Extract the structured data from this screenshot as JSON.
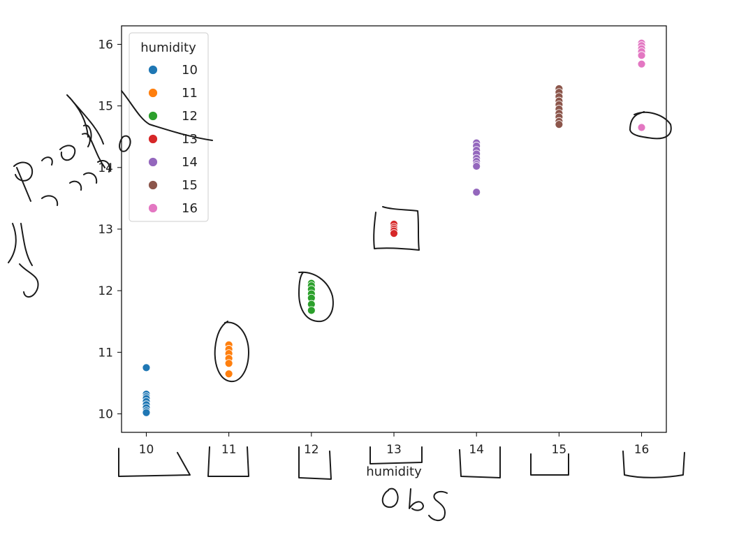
{
  "chart_data": {
    "type": "scatter",
    "xlabel": "humidity",
    "ylabel": "",
    "xlim": [
      9.7,
      16.3
    ],
    "ylim": [
      9.7,
      16.3
    ],
    "xticks": [
      "10",
      "11",
      "12",
      "13",
      "14",
      "15",
      "16"
    ],
    "yticks": [
      "10",
      "11",
      "12",
      "13",
      "14",
      "15",
      "16"
    ],
    "grid": false,
    "legend": {
      "title": "humidity",
      "placement": "top-left"
    },
    "series": [
      {
        "name": "10",
        "color": "#1f77b4",
        "x": 10,
        "y": [
          10.75,
          10.32,
          10.28,
          10.25,
          10.2,
          10.15,
          10.1,
          10.05,
          10.02
        ]
      },
      {
        "name": "11",
        "color": "#ff7f0e",
        "x": 11,
        "y": [
          11.12,
          11.05,
          10.98,
          10.9,
          10.82,
          10.65
        ]
      },
      {
        "name": "12",
        "color": "#2ca02c",
        "x": 12,
        "y": [
          12.12,
          12.08,
          12.02,
          11.95,
          11.88,
          11.78,
          11.68
        ]
      },
      {
        "name": "13",
        "color": "#d62728",
        "x": 13,
        "y": [
          13.08,
          13.03,
          13.0,
          12.97,
          12.93
        ]
      },
      {
        "name": "14",
        "color": "#9467bd",
        "x": 14,
        "y": [
          14.4,
          14.35,
          14.28,
          14.22,
          14.15,
          14.1,
          14.05,
          14.02,
          13.6
        ]
      },
      {
        "name": "15",
        "color": "#8c564b",
        "x": 15,
        "y": [
          15.28,
          15.22,
          15.15,
          15.08,
          15.02,
          14.95,
          14.88,
          14.82,
          14.75,
          14.7
        ]
      },
      {
        "name": "16",
        "color": "#e377c2",
        "x": 16,
        "y": [
          16.02,
          15.98,
          15.93,
          15.88,
          15.82,
          15.68,
          14.65
        ]
      }
    ]
  },
  "handwriting": {
    "ylabel_scrawl": "pred humidity",
    "xlabel_scrawl": "obs"
  }
}
